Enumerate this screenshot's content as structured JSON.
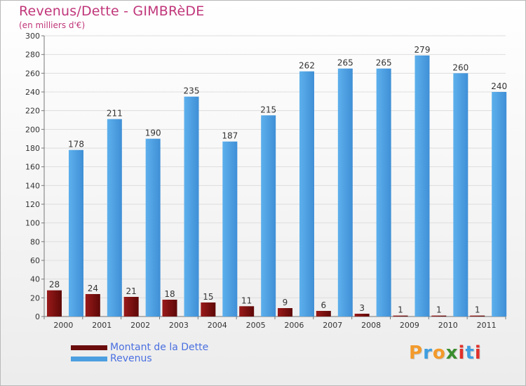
{
  "title": "Revenus/Dette - GIMBRèDE",
  "subtitle": "(en milliers d'€)",
  "chart_data": {
    "type": "bar",
    "categories": [
      "2000",
      "2001",
      "2002",
      "2003",
      "2004",
      "2005",
      "2006",
      "2007",
      "2008",
      "2009",
      "2010",
      "2011"
    ],
    "series": [
      {
        "name": "Montant de la Dette",
        "color": "#7a0e0e",
        "values": [
          28,
          24,
          21,
          18,
          15,
          11,
          9,
          6,
          3,
          1,
          1,
          1
        ]
      },
      {
        "name": "Revenus",
        "color": "#4c9fe0",
        "values": [
          178,
          211,
          190,
          235,
          187,
          215,
          262,
          265,
          265,
          279,
          260,
          240
        ]
      }
    ],
    "ylim": [
      0,
      300
    ],
    "yticks": [
      0,
      20,
      40,
      60,
      80,
      100,
      120,
      140,
      160,
      180,
      200,
      220,
      240,
      260,
      280,
      300
    ],
    "grid": true,
    "legend": "bottom-left"
  },
  "logo": {
    "letters": [
      "P",
      "r",
      "o",
      "x",
      "i",
      "t",
      "i"
    ],
    "colors": [
      "#f39a2b",
      "#3f9ee0",
      "#f39a2b",
      "#3a8d2e",
      "#e0302a",
      "#3f9ee0",
      "#e0302a"
    ]
  }
}
